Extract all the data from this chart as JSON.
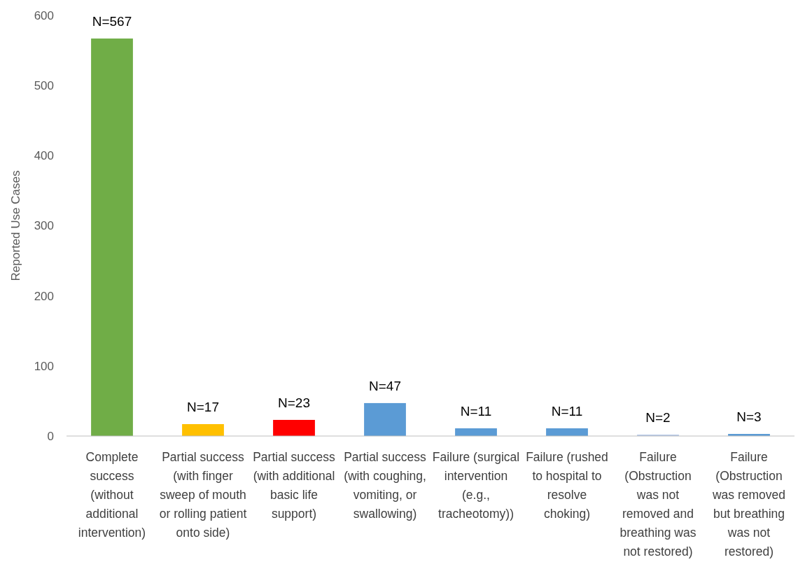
{
  "chart_data": {
    "type": "bar",
    "ylabel": "Reported Use Cases",
    "categories": [
      "Complete success (without additional intervention)",
      "Partial success (with finger sweep of mouth or rolling patient onto side)",
      "Partial success (with additional basic life support)",
      "Partial success (with coughing, vomiting, or swallowing)",
      "Failure (surgical intervention (e.g., tracheotomy))",
      "Failure (rushed to hospital to resolve choking)",
      "Failure (Obstruction was not removed and breathing was not restored)",
      "Failure (Obstruction was removed but breathing was not restored)"
    ],
    "values": [
      567,
      17,
      23,
      47,
      11,
      11,
      2,
      3
    ],
    "colors": [
      "#70ad47",
      "#ffc000",
      "#ff0000",
      "#5b9bd5",
      "#5b9bd5",
      "#5b9bd5",
      "#b4c7e7",
      "#5b9bd5"
    ],
    "value_labels": [
      "N=567",
      "N=17",
      "N=23",
      "N=47",
      "N=11",
      "N=11",
      "N=2",
      "N=3"
    ],
    "ylim": [
      0,
      600
    ],
    "yticks": [
      0,
      100,
      200,
      300,
      400,
      500,
      600
    ],
    "grid": false
  }
}
